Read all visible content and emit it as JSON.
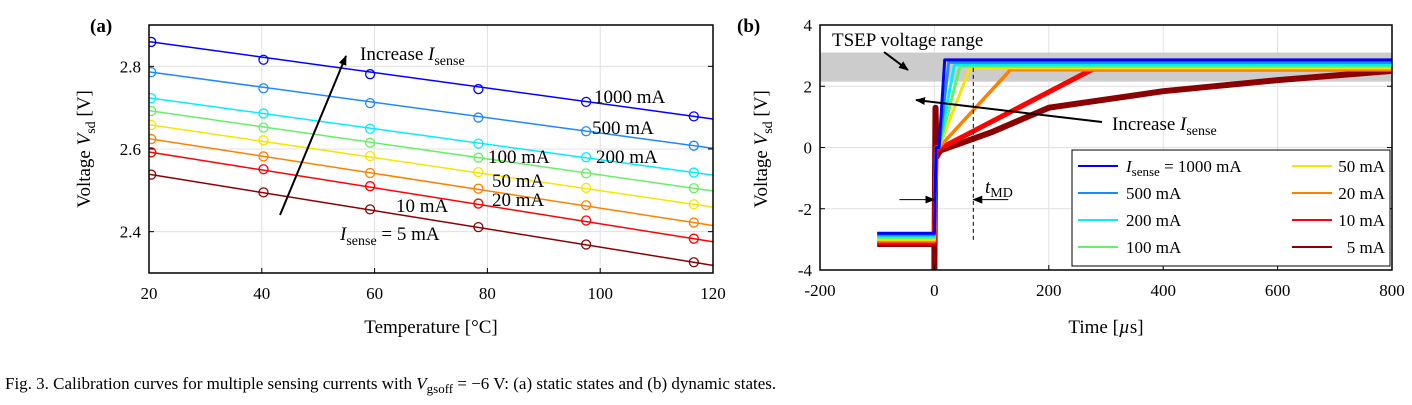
{
  "caption": {
    "prefix": "Fig. 3.  Calibration curves for multiple sensing currents with ",
    "var_main": "V",
    "var_sub": "gsoff",
    "suffix": " = −6 V: (a) static states and (b) dynamic states."
  },
  "chart_data": [
    {
      "panel_label": "(a)",
      "type": "line",
      "xlabel": "Temperature [°C]",
      "ylabel_prefix": "Voltage ",
      "ylabel_var": "V",
      "ylabel_sub": "sd",
      "ylabel_suffix": " [V]",
      "xlim": [
        20,
        120
      ],
      "ylim": [
        2.3,
        2.9
      ],
      "xticks": [
        20,
        40,
        60,
        80,
        100,
        120
      ],
      "yticks": [
        2.4,
        2.6,
        2.8
      ],
      "ytick_labels": [
        "2.4",
        "2.6",
        "2.8"
      ],
      "grid": true,
      "markers": "circle",
      "x": [
        20.4,
        40.3,
        59.2,
        78.4,
        97.5,
        116.6
      ],
      "series": [
        {
          "name": "1000 mA",
          "color": "#0000ff",
          "values": [
            2.859,
            2.816,
            2.781,
            2.745,
            2.714,
            2.679
          ]
        },
        {
          "name": "500 mA",
          "color": "#1e88ff",
          "values": [
            2.786,
            2.747,
            2.711,
            2.676,
            2.643,
            2.608
          ]
        },
        {
          "name": "200 mA",
          "color": "#00eeff",
          "values": [
            2.723,
            2.686,
            2.649,
            2.613,
            2.58,
            2.543
          ]
        },
        {
          "name": "100 mA",
          "color": "#66f066",
          "values": [
            2.692,
            2.652,
            2.615,
            2.579,
            2.541,
            2.505
          ]
        },
        {
          "name": "50 mA",
          "color": "#f5e600",
          "values": [
            2.658,
            2.621,
            2.583,
            2.544,
            2.506,
            2.466
          ]
        },
        {
          "name": "20 mA",
          "color": "#ff8000",
          "values": [
            2.624,
            2.582,
            2.542,
            2.504,
            2.464,
            2.422
          ]
        },
        {
          "name": "10 mA",
          "color": "#ff0000",
          "values": [
            2.592,
            2.551,
            2.51,
            2.468,
            2.427,
            2.383
          ]
        },
        {
          "name": "5 mA",
          "color": "#8b0000",
          "values": [
            2.538,
            2.495,
            2.454,
            2.411,
            2.369,
            2.326
          ]
        }
      ],
      "annotations": {
        "increase_prefix": "Increase ",
        "increase_var": "I",
        "increase_sub": "sense",
        "label_1000": "1000 mA",
        "label_500": "500 mA",
        "label_200": "200 mA",
        "label_100": "100 mA",
        "label_50": "50 mA",
        "label_20": "20 mA",
        "label_10": "10 mA",
        "label_5_var": "I",
        "label_5_sub": "sense",
        "label_5_suffix": " = 5 mA"
      }
    },
    {
      "panel_label": "(b)",
      "type": "line",
      "xlabel_prefix": "Time [",
      "xlabel_unit": "µ",
      "xlabel_suffix": "s]",
      "ylabel_prefix": "Voltage ",
      "ylabel_var": "V",
      "ylabel_sub": "sd",
      "ylabel_suffix": " [V]",
      "xlim": [
        -200,
        800
      ],
      "ylim": [
        -4,
        4
      ],
      "xticks": [
        -200,
        0,
        200,
        400,
        600,
        800
      ],
      "yticks": [
        -4,
        -2,
        0,
        2,
        4
      ],
      "grid": true,
      "shaded_band": {
        "label": "TSEP voltage range",
        "ymin": 2.15,
        "ymax": 3.1,
        "color": "#cccccc"
      },
      "t_md": {
        "label_var": "t",
        "label_sub": "MD",
        "x": 68
      },
      "series": [
        {
          "name": "1000 mA",
          "color": "#0000ff",
          "points": [
            [
              -100,
              -2.8
            ],
            [
              0,
              -2.8
            ],
            [
              3,
              0
            ],
            [
              8,
              0
            ],
            [
              18,
              2.86
            ],
            [
              800,
              2.86
            ]
          ]
        },
        {
          "name": "500 mA",
          "color": "#1e88ff",
          "points": [
            [
              -100,
              -2.85
            ],
            [
              0,
              -2.85
            ],
            [
              3,
              0
            ],
            [
              8,
              0
            ],
            [
              25,
              2.78
            ],
            [
              800,
              2.78
            ]
          ]
        },
        {
          "name": "200 mA",
          "color": "#00eeff",
          "points": [
            [
              -100,
              -2.9
            ],
            [
              0,
              -2.9
            ],
            [
              3,
              0
            ],
            [
              8,
              0
            ],
            [
              35,
              2.7
            ],
            [
              800,
              2.7
            ]
          ]
        },
        {
          "name": "100 mA",
          "color": "#66f066",
          "points": [
            [
              -100,
              -2.95
            ],
            [
              0,
              -2.95
            ],
            [
              3,
              0
            ],
            [
              8,
              0
            ],
            [
              45,
              2.65
            ],
            [
              800,
              2.65
            ]
          ]
        },
        {
          "name": "50 mA",
          "color": "#f5e600",
          "points": [
            [
              -100,
              -3.0
            ],
            [
              0,
              -3.0
            ],
            [
              3,
              0
            ],
            [
              8,
              0
            ],
            [
              62,
              2.6
            ],
            [
              800,
              2.6
            ]
          ]
        },
        {
          "name": "20 mA",
          "color": "#ff8000",
          "points": [
            [
              -100,
              -3.05
            ],
            [
              0,
              -3.05
            ],
            [
              3,
              0
            ],
            [
              8,
              0
            ],
            [
              133,
              2.54
            ],
            [
              800,
              2.54
            ]
          ]
        },
        {
          "name": "10 mA",
          "color": "#ff0000",
          "points": [
            [
              -100,
              -3.1
            ],
            [
              0,
              -3.1
            ],
            [
              3,
              0
            ],
            [
              8,
              -0.05
            ],
            [
              277,
              2.56
            ],
            [
              800,
              2.56
            ]
          ]
        },
        {
          "name": "5 mA",
          "color": "#8b0000",
          "points": [
            [
              -100,
              -3.15
            ],
            [
              0,
              -3.15
            ],
            [
              0,
              -4
            ],
            [
              2,
              1.3
            ],
            [
              4,
              -0.3
            ],
            [
              10,
              -0.1
            ],
            [
              100,
              0.5
            ],
            [
              200,
              1.3
            ],
            [
              400,
              1.84
            ],
            [
              600,
              2.2
            ],
            [
              800,
              2.5
            ]
          ]
        }
      ],
      "legend": {
        "first_var": "I",
        "first_sub": "sense",
        "first_suffix": " = 1000 mA",
        "entries": [
          "1000 mA",
          "500 mA",
          "200 mA",
          "100 mA",
          "50 mA",
          "20 mA",
          "10 mA",
          "5 mA"
        ],
        "placement": "bottom-right"
      },
      "annotations": {
        "increase_prefix": "Increase ",
        "increase_var": "I",
        "increase_sub": "sense"
      }
    }
  ]
}
